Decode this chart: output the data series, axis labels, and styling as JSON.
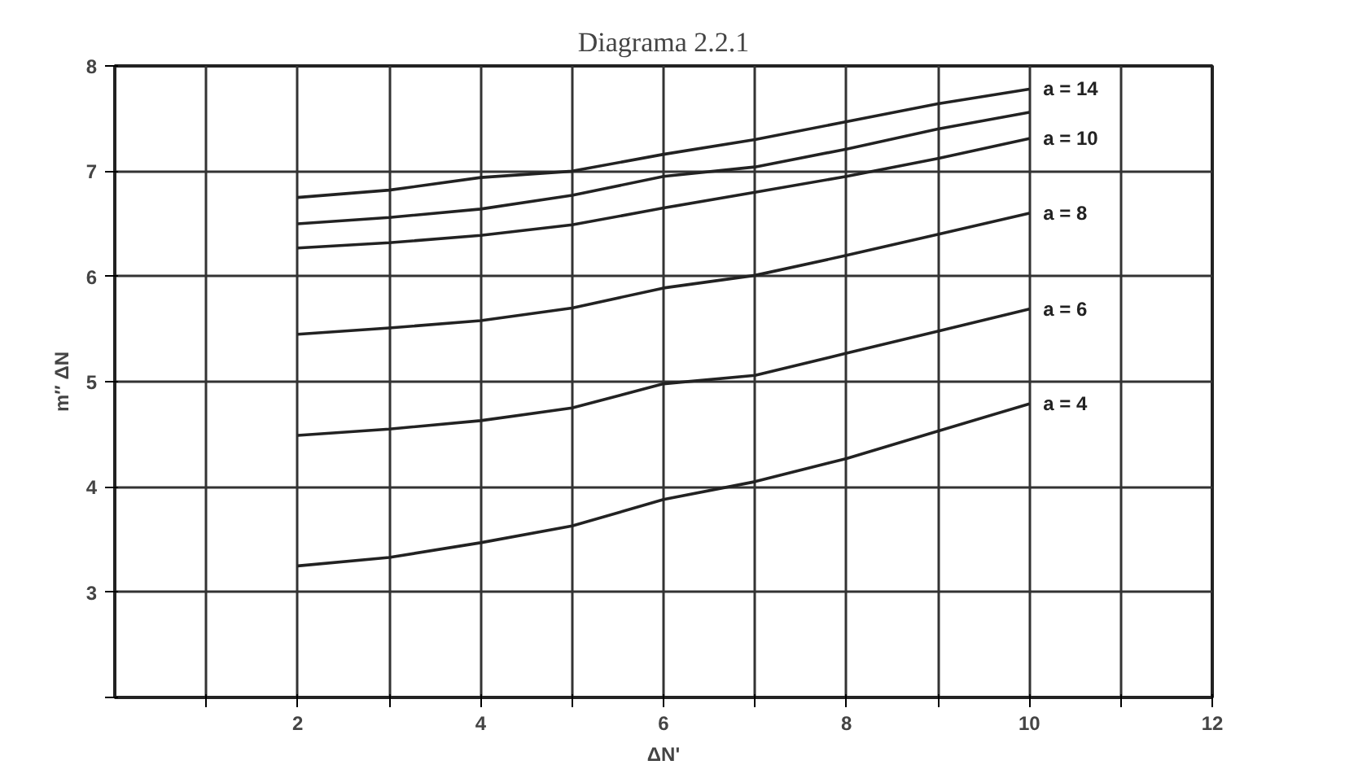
{
  "chart_data": {
    "type": "line",
    "title": "Diagrama 2.2.1",
    "xlabel": "ΔN'",
    "ylabel": "m″ ΔN",
    "x": [
      2,
      3,
      4,
      5,
      6,
      7,
      8,
      9,
      10
    ],
    "xlim": [
      0,
      12
    ],
    "ylim": [
      2,
      8
    ],
    "xticks": [
      {
        "value": 1,
        "label": null
      },
      2,
      {
        "value": 3,
        "label": null
      },
      4,
      {
        "value": 5,
        "label": null
      },
      6,
      {
        "value": 7,
        "label": null
      },
      8,
      {
        "value": 9,
        "label": null
      },
      10,
      {
        "value": 11,
        "label": null
      },
      12
    ],
    "yticks": [
      {
        "value": 2,
        "label": null
      },
      3,
      4,
      5,
      6,
      7,
      8
    ],
    "grid": true,
    "marker": "none",
    "line_style": "solid",
    "series": [
      {
        "name": "a = 14",
        "color": "#222222",
        "values": [
          6.75,
          6.82,
          6.94,
          7.0,
          7.16,
          7.3,
          7.47,
          7.64,
          7.78
        ]
      },
      {
        "color": "#222222",
        "values": [
          6.5,
          6.56,
          6.64,
          6.77,
          6.95,
          7.04,
          7.21,
          7.4,
          7.56
        ]
      },
      {
        "name": "a = 10",
        "color": "#222222",
        "values": [
          6.27,
          6.32,
          6.39,
          6.49,
          6.65,
          6.8,
          6.95,
          7.12,
          7.31
        ]
      },
      {
        "name": "a = 8",
        "color": "#222222",
        "values": [
          5.45,
          5.51,
          5.58,
          5.7,
          5.89,
          6.01,
          6.2,
          6.4,
          6.6
        ]
      },
      {
        "name": "a = 6",
        "color": "#222222",
        "values": [
          4.49,
          4.55,
          4.63,
          4.75,
          4.98,
          5.06,
          5.27,
          5.48,
          5.69
        ]
      },
      {
        "name": "a = 4",
        "color": "#222222",
        "values": [
          3.25,
          3.33,
          3.47,
          3.63,
          3.88,
          4.05,
          4.27,
          4.53,
          4.79
        ]
      }
    ]
  }
}
